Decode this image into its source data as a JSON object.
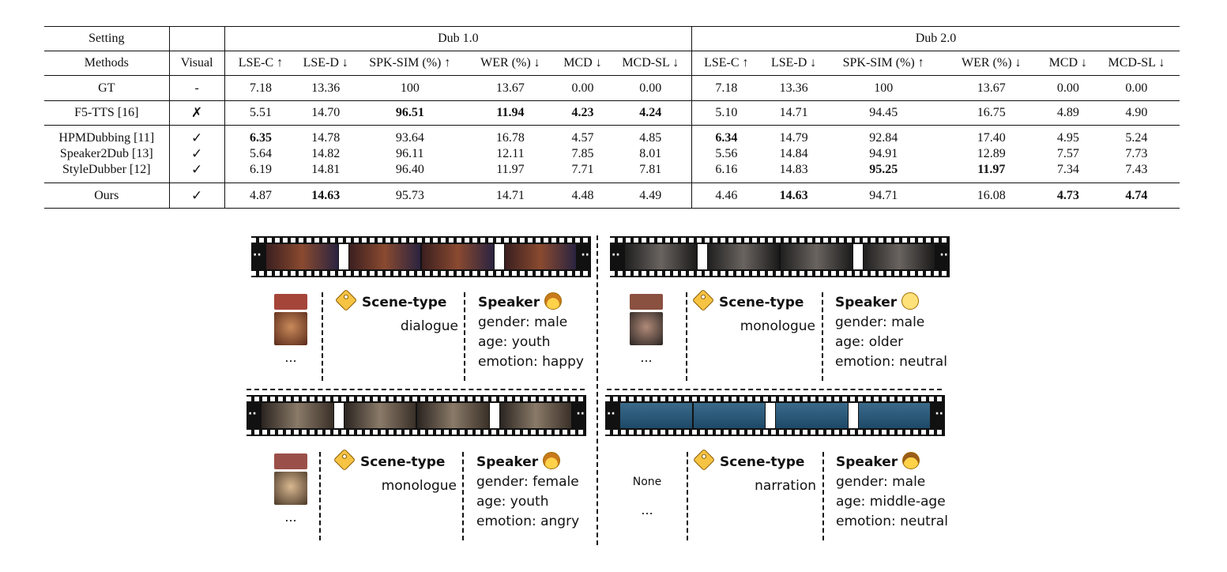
{
  "table": {
    "setting_label": "Setting",
    "methods_label": "Methods",
    "visual_label": "Visual",
    "group1": "Dub 1.0",
    "group2": "Dub 2.0",
    "metrics": [
      "LSE-C ↑",
      "LSE-D ↓",
      "SPK-SIM (%) ↑",
      "WER (%) ↓",
      "MCD ↓",
      "MCD-SL ↓"
    ],
    "rows": [
      {
        "method": "GT",
        "visual": "-",
        "d1": [
          "7.18",
          "13.36",
          "100",
          "13.67",
          "0.00",
          "0.00"
        ],
        "d2": [
          "7.18",
          "13.36",
          "100",
          "13.67",
          "0.00",
          "0.00"
        ]
      },
      {
        "method": "F5-TTS [16]",
        "visual": "✗",
        "d1": [
          "5.51",
          "14.70",
          "96.51",
          "11.94",
          "4.23",
          "4.24"
        ],
        "d2": [
          "5.10",
          "14.71",
          "94.45",
          "16.75",
          "4.89",
          "4.90"
        ]
      },
      {
        "method": "HPMDubbing [11]",
        "visual": "✓",
        "d1": [
          "6.35",
          "14.78",
          "93.64",
          "16.78",
          "4.57",
          "4.85"
        ],
        "d2": [
          "6.34",
          "14.79",
          "92.84",
          "17.40",
          "4.95",
          "5.24"
        ]
      },
      {
        "method": "Speaker2Dub [13]",
        "visual": "✓",
        "d1": [
          "5.64",
          "14.82",
          "96.11",
          "12.11",
          "7.85",
          "8.01"
        ],
        "d2": [
          "5.56",
          "14.84",
          "94.91",
          "12.89",
          "7.57",
          "7.73"
        ]
      },
      {
        "method": "StyleDubber [12]",
        "visual": "✓",
        "d1": [
          "6.19",
          "14.81",
          "96.40",
          "11.97",
          "7.71",
          "7.81"
        ],
        "d2": [
          "6.16",
          "14.83",
          "95.25",
          "11.97",
          "7.34",
          "7.43"
        ]
      },
      {
        "method": "Ours",
        "visual": "✓",
        "d1": [
          "4.87",
          "14.63",
          "95.73",
          "14.71",
          "4.48",
          "4.49"
        ],
        "d2": [
          "4.46",
          "14.63",
          "94.71",
          "16.08",
          "4.73",
          "4.74"
        ]
      }
    ]
  },
  "figure": {
    "colors": {
      "frame_warm": "#7a3a2a",
      "frame_dark": "#3a3a3a",
      "frame_grey": "#4a4540",
      "frame_blue": "#2f5a78",
      "tag": "#f6c343"
    },
    "panels": [
      {
        "thumbs_ellipsis": "...",
        "scene_label": "Scene-type",
        "scene_value": "dialogue",
        "speaker_label": "Speaker",
        "gender": "gender: male",
        "age": "age: youth",
        "emotion": "emotion: happy",
        "face_icon": "girl-face-icon"
      },
      {
        "thumbs_ellipsis": "...",
        "scene_label": "Scene-type",
        "scene_value": "monologue",
        "speaker_label": "Speaker",
        "gender": "gender: male",
        "age": "age: older",
        "emotion": "emotion: neutral",
        "face_icon": "old-man-face-icon"
      },
      {
        "thumbs_ellipsis": "...",
        "scene_label": "Scene-type",
        "scene_value": "monologue",
        "speaker_label": "Speaker",
        "gender": "gender: female",
        "age": "age: youth",
        "emotion": "emotion: angry",
        "face_icon": "girl-face-icon"
      },
      {
        "thumbs_none": "None",
        "thumbs_ellipsis": "...",
        "scene_label": "Scene-type",
        "scene_value": "narration",
        "speaker_label": "Speaker",
        "gender": "gender: male",
        "age": "age: middle-age",
        "emotion": "emotion: neutral",
        "face_icon": "man-face-icon"
      }
    ]
  }
}
